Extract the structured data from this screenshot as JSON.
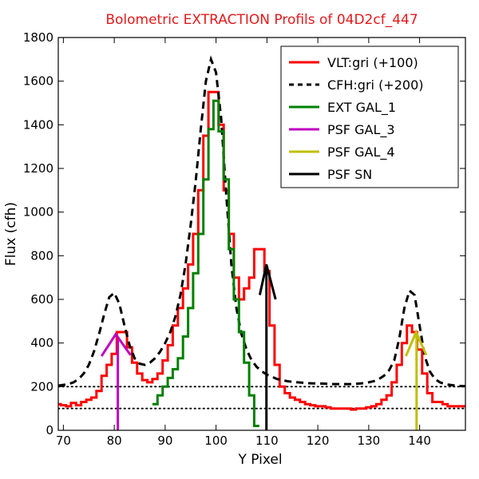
{
  "chart_data": {
    "type": "line",
    "title": "Bolometric EXTRACTION Profils of 04D2cf_447",
    "xlabel": "Y Pixel",
    "ylabel": "Flux (cfh)",
    "xlim": [
      69,
      149
    ],
    "ylim": [
      0,
      1800
    ],
    "x_ticks": [
      70,
      80,
      90,
      100,
      110,
      120,
      130,
      140
    ],
    "y_ticks": [
      0,
      200,
      400,
      600,
      800,
      1000,
      1200,
      1400,
      1600,
      1800
    ],
    "grid": false,
    "legend_position": "top-right",
    "colors": {
      "title": "#e31a1c",
      "vlt": "#ff0000",
      "cfh": "#000000",
      "ext_gal_1": "#008000",
      "psf_gal_3": "#bf00bf",
      "psf_gal_4": "#bfbf00",
      "psf_sn": "#000000"
    },
    "series": [
      {
        "name": "VLT:gri (+100)",
        "style": "steps",
        "color": "#ff0000",
        "x": [
          69,
          70,
          71,
          72,
          73,
          74,
          75,
          76,
          77,
          78,
          79,
          80,
          81,
          82,
          83,
          84,
          85,
          86,
          87,
          88,
          89,
          90,
          91,
          92,
          93,
          94,
          95,
          96,
          97,
          98,
          99,
          100,
          101,
          102,
          103,
          104,
          105,
          106,
          107,
          108,
          109,
          110,
          111,
          112,
          113,
          114,
          115,
          116,
          117,
          118,
          119,
          120,
          121,
          122,
          123,
          124,
          125,
          126,
          127,
          128,
          129,
          130,
          131,
          132,
          133,
          134,
          135,
          136,
          137,
          138,
          139,
          140,
          141,
          142,
          143,
          144,
          145,
          146,
          147,
          148,
          149
        ],
        "y": [
          120,
          115,
          110,
          125,
          115,
          130,
          140,
          150,
          180,
          250,
          300,
          350,
          450,
          450,
          380,
          310,
          260,
          230,
          220,
          235,
          260,
          320,
          390,
          480,
          560,
          650,
          760,
          900,
          1100,
          1350,
          1550,
          1550,
          1400,
          1100,
          900,
          700,
          600,
          650,
          700,
          830,
          830,
          730,
          480,
          300,
          200,
          170,
          150,
          140,
          130,
          120,
          115,
          110,
          110,
          105,
          100,
          100,
          100,
          100,
          95,
          100,
          100,
          105,
          110,
          120,
          140,
          160,
          220,
          300,
          400,
          480,
          450,
          370,
          260,
          170,
          130,
          130,
          120,
          110,
          110,
          110,
          110
        ]
      },
      {
        "name": "CFH:gri (+200)",
        "style": "dashed",
        "color": "#000000",
        "x": [
          69,
          70,
          71,
          72,
          73,
          74,
          75,
          76,
          77,
          78,
          79,
          80,
          81,
          82,
          83,
          84,
          85,
          86,
          87,
          88,
          89,
          90,
          91,
          92,
          93,
          94,
          95,
          96,
          97,
          98,
          99,
          100,
          101,
          102,
          103,
          104,
          105,
          106,
          107,
          108,
          109,
          110,
          111,
          112,
          113,
          114,
          115,
          116,
          117,
          118,
          119,
          120,
          121,
          122,
          123,
          124,
          125,
          126,
          127,
          128,
          129,
          130,
          131,
          132,
          133,
          134,
          135,
          136,
          137,
          138,
          139,
          140,
          141,
          142,
          143,
          144,
          145,
          146,
          147,
          148,
          149
        ],
        "y": [
          205,
          208,
          212,
          220,
          235,
          260,
          300,
          360,
          440,
          530,
          610,
          630,
          580,
          480,
          390,
          330,
          305,
          300,
          310,
          330,
          360,
          400,
          450,
          520,
          620,
          760,
          940,
          1140,
          1380,
          1600,
          1700,
          1640,
          1430,
          1080,
          760,
          560,
          440,
          370,
          320,
          290,
          270,
          255,
          245,
          235,
          230,
          225,
          222,
          220,
          218,
          216,
          215,
          215,
          214,
          213,
          212,
          212,
          212,
          212,
          212,
          214,
          216,
          220,
          225,
          235,
          250,
          275,
          320,
          420,
          560,
          640,
          620,
          480,
          340,
          270,
          235,
          220,
          212,
          208,
          205,
          203,
          202
        ]
      },
      {
        "name": "EXT GAL_1",
        "style": "steps",
        "color": "#008000",
        "x": [
          88,
          89,
          90,
          91,
          92,
          93,
          94,
          95,
          96,
          97,
          98,
          99,
          100,
          101,
          102,
          103,
          104,
          105,
          106,
          107,
          108
        ],
        "y": [
          120,
          160,
          200,
          240,
          280,
          330,
          430,
          560,
          720,
          900,
          1150,
          1380,
          1510,
          1370,
          1150,
          830,
          600,
          450,
          310,
          160,
          20
        ]
      },
      {
        "name": "PSF GAL_3",
        "style": "line",
        "color": "#bf00bf",
        "x": [
          77.5,
          80.3,
          83.2
        ],
        "y": [
          340,
          440,
          345
        ],
        "marker_x": 80.7,
        "marker_top": 415
      },
      {
        "name": "PSF GAL_4",
        "style": "line",
        "color": "#bfbf00",
        "x": [
          137.3,
          139.3,
          141.3
        ],
        "y": [
          340,
          450,
          345
        ],
        "marker_x": 139.4,
        "marker_top": 450
      },
      {
        "name": "PSF SN",
        "style": "line",
        "color": "#000000",
        "x": [
          108.6,
          109.9,
          111.7
        ],
        "y": [
          620,
          760,
          600
        ],
        "marker_x": 109.9,
        "marker_top": 750
      }
    ],
    "reference_lines": [
      {
        "y": 200,
        "style": "dotted",
        "color": "#000000"
      },
      {
        "y": 100,
        "style": "dotted",
        "color": "#000000"
      }
    ]
  }
}
